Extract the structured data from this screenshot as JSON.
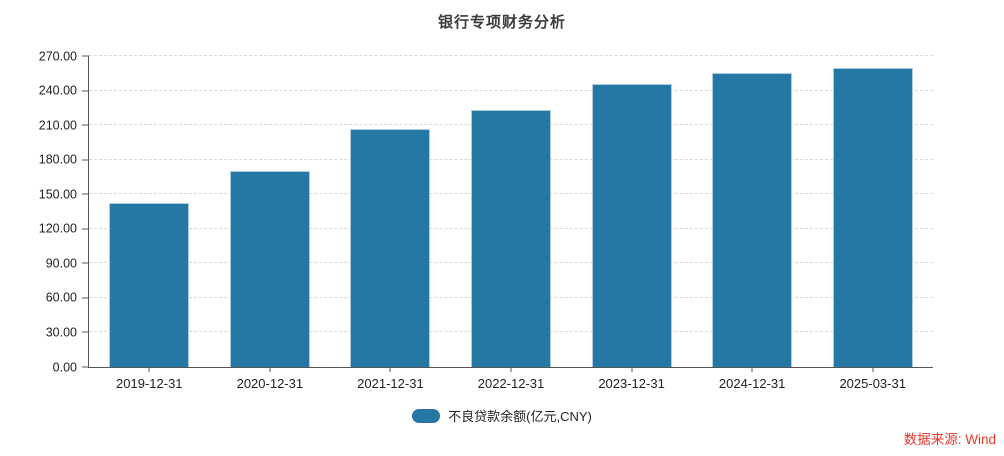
{
  "title": "银行专项财务分析",
  "source_note": "数据来源: Wind",
  "legend": {
    "label": "不良贷款余额(亿元,CNY)",
    "marker": "rounded-pill"
  },
  "colors": {
    "bar": "#2478a3",
    "bar_border": "#aecbdd",
    "grid": "#d9d9d9",
    "axis": "#555555",
    "source": "#e8392d",
    "title": "#3c3c3c",
    "label": "#222222"
  },
  "chart_data": {
    "type": "bar",
    "title": "银行专项财务分析",
    "categories": [
      "2019-12-31",
      "2020-12-31",
      "2021-12-31",
      "2022-12-31",
      "2023-12-31",
      "2024-12-31",
      "2025-03-31"
    ],
    "values": [
      142,
      170,
      207,
      223,
      246,
      255,
      260
    ],
    "series_name": "不良贷款余额(亿元,CNY)",
    "xlabel": "",
    "ylabel": "不良贷款余额(亿元,CNY)",
    "ylim": [
      0,
      270
    ],
    "ytick_step": 30,
    "ytick_labels": [
      "0.00",
      "30.00",
      "60.00",
      "90.00",
      "120.00",
      "150.00",
      "180.00",
      "210.00",
      "240.00",
      "270.00"
    ],
    "grid": "horizontal-dashed",
    "legend_position": "bottom"
  }
}
